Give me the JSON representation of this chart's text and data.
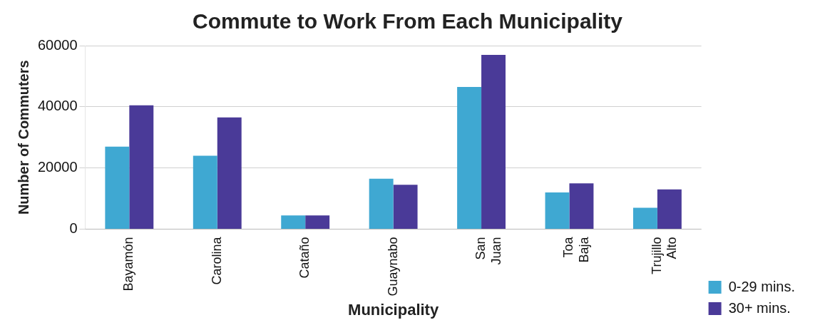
{
  "chart_data": {
    "type": "bar",
    "title": "Commute to Work From Each Municipality",
    "xlabel": "Municipality",
    "ylabel": "Number of Commuters",
    "categories": [
      "Bayamón",
      "Carolina",
      "Cataño",
      "Guaynabo",
      "San Juan",
      "Toa Baja",
      "Trujillo Alto"
    ],
    "series": [
      {
        "name": "0-29 mins.",
        "color": "#3fa8d2",
        "values": [
          27000,
          24000,
          4500,
          16500,
          46500,
          12000,
          7000
        ]
      },
      {
        "name": "30+ mins.",
        "color": "#4a3a98",
        "values": [
          40500,
          36500,
          4500,
          14500,
          57000,
          15000,
          13000
        ]
      }
    ],
    "ylim": [
      0,
      60000
    ],
    "yticks": [
      0,
      20000,
      40000,
      60000
    ],
    "grid": "y",
    "legend": "bottom right"
  }
}
